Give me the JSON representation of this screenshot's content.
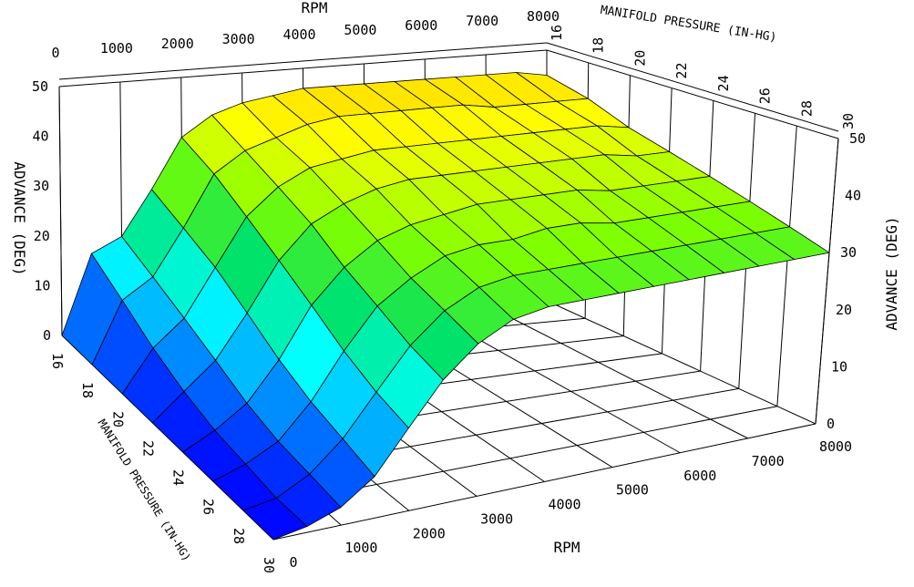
{
  "chart_data": {
    "type": "surface3d",
    "title": "",
    "x_axis": {
      "label": "RPM",
      "range": [
        0,
        8000
      ],
      "ticks": [
        "0",
        "1000",
        "2000",
        "3000",
        "4000",
        "5000",
        "6000",
        "7000",
        "8000"
      ]
    },
    "y_axis": {
      "label": "MANIFOLD PRESSURE (IN-HG)",
      "range": [
        16,
        30
      ],
      "ticks": [
        "16",
        "18",
        "20",
        "22",
        "24",
        "26",
        "28",
        "30"
      ]
    },
    "z_axis": {
      "label": "ADVANCE (DEG)",
      "range": [
        0,
        50
      ],
      "ticks": [
        "0",
        "10",
        "20",
        "30",
        "40",
        "50"
      ]
    },
    "rpm": [
      0,
      500,
      1000,
      1500,
      2000,
      2500,
      3000,
      3500,
      4000,
      4500,
      5000,
      5500,
      6000,
      6500,
      7000,
      7500,
      8000
    ],
    "manifold_pressure": [
      16,
      18,
      20,
      22,
      24,
      26,
      28,
      30
    ],
    "advance": [
      [
        0,
        16,
        19,
        28,
        38,
        42,
        44,
        45,
        46,
        46,
        46,
        46,
        46,
        46,
        46,
        46,
        45
      ],
      [
        0,
        12,
        16,
        25,
        35,
        39,
        41,
        43,
        44,
        44,
        44,
        44,
        44,
        43,
        43,
        43,
        43
      ],
      [
        0,
        8,
        13,
        22,
        31,
        36,
        39,
        40,
        41,
        41,
        41,
        41,
        41,
        41,
        41,
        41,
        40
      ],
      [
        0,
        5,
        10,
        18,
        27,
        33,
        36,
        38,
        39,
        39,
        39,
        39,
        39,
        39,
        39,
        38,
        38
      ],
      [
        0,
        3,
        7,
        14,
        23,
        29,
        33,
        35,
        36,
        37,
        37,
        37,
        37,
        36,
        36,
        36,
        36
      ],
      [
        0,
        2,
        5,
        11,
        19,
        26,
        30,
        33,
        34,
        34,
        35,
        35,
        34,
        34,
        34,
        34,
        34
      ],
      [
        0,
        1,
        4,
        9,
        16,
        23,
        28,
        31,
        32,
        32,
        32,
        32,
        32,
        32,
        32,
        32,
        32
      ],
      [
        0,
        1,
        3,
        7,
        14,
        21,
        26,
        29,
        30,
        30,
        30,
        30,
        30,
        30,
        30,
        30,
        30
      ]
    ],
    "colormap": [
      "#0000ff",
      "#0080ff",
      "#00ffff",
      "#00e060",
      "#80ff00",
      "#ffff00",
      "#ffc000"
    ],
    "grid": true
  }
}
